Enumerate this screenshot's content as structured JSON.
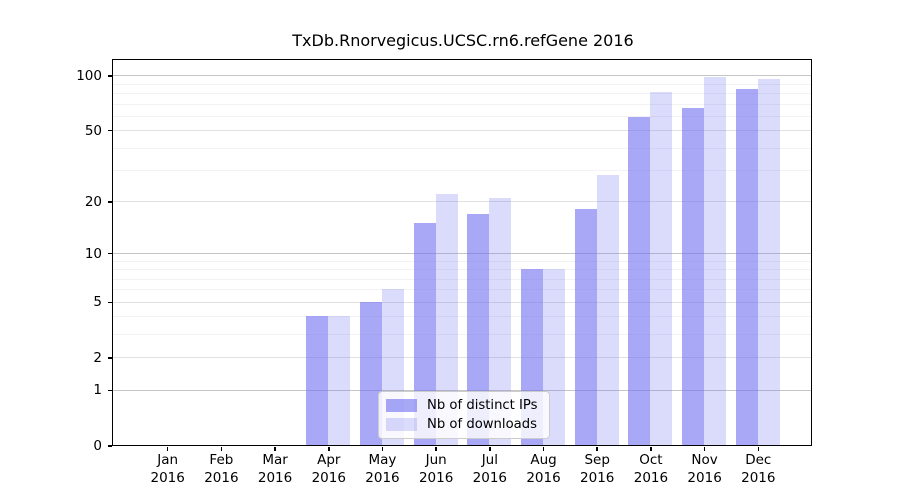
{
  "chart_data": {
    "type": "bar",
    "title": "TxDb.Rnorvegicus.UCSC.rn6.refGene 2016",
    "categories": [
      "Jan",
      "Feb",
      "Mar",
      "Apr",
      "May",
      "Jun",
      "Jul",
      "Aug",
      "Sep",
      "Oct",
      "Nov",
      "Dec"
    ],
    "year": "2016",
    "series": [
      {
        "name": "Nb of distinct IPs",
        "color": "rgba(110,110,240,0.60)",
        "values": [
          0,
          0,
          0,
          4,
          5,
          15,
          17,
          8,
          18,
          59,
          66,
          84
        ]
      },
      {
        "name": "Nb of downloads",
        "color": "rgba(110,110,240,0.25)",
        "values": [
          0,
          0,
          0,
          4,
          6,
          22,
          21,
          8,
          28,
          81,
          98,
          95
        ]
      }
    ],
    "xlabel": "",
    "ylabel": "",
    "yaxis": {
      "scale": "log1p",
      "ticks": [
        0,
        1,
        2,
        5,
        10,
        20,
        50,
        100
      ],
      "minor_ticks": [
        3,
        4,
        6,
        7,
        8,
        9,
        30,
        40,
        60,
        70,
        80,
        90
      ],
      "ylim": [
        0,
        119
      ]
    },
    "grid": true,
    "legend_position": "bottom-center"
  },
  "colors": {
    "bar_dark": "rgba(110,110,240,0.60)",
    "bar_light": "rgba(110,110,240,0.25)",
    "grid_decade": "#c6c6c6",
    "grid_major": "#e1e1e1",
    "grid_minor": "#f2f2f4",
    "spine": "#000000",
    "background": "#ffffff"
  }
}
